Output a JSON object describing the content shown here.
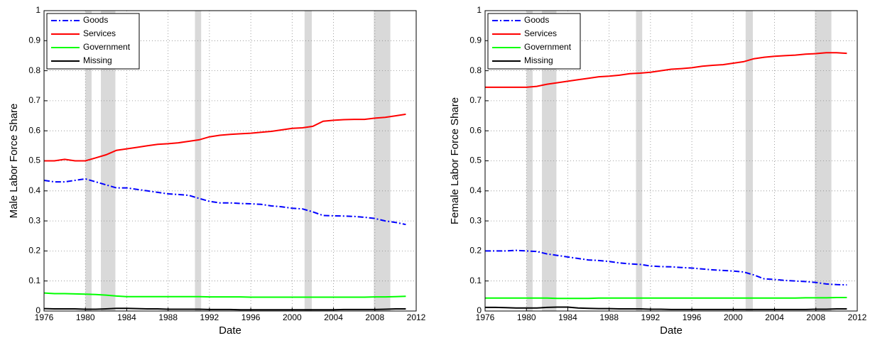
{
  "chart_data": [
    {
      "type": "line",
      "xlabel": "Date",
      "ylabel": "Male Labor Force Share",
      "xlim": [
        1976,
        2012
      ],
      "xticks": [
        1976,
        1980,
        1984,
        1988,
        1992,
        1996,
        2000,
        2004,
        2008,
        2012
      ],
      "ylim": [
        0,
        1
      ],
      "yticks": [
        0,
        0.1,
        0.2,
        0.3,
        0.4,
        0.5,
        0.6,
        0.7,
        0.8,
        0.9,
        1
      ],
      "grid": true,
      "legend": "upper left",
      "recessions": [
        [
          1980.0,
          1980.6
        ],
        [
          1981.5,
          1982.9
        ],
        [
          1990.6,
          1991.2
        ],
        [
          2001.2,
          2001.9
        ],
        [
          2007.9,
          2009.5
        ]
      ],
      "recession_color": "#d9d9d9",
      "x": [
        1976,
        1977,
        1978,
        1979,
        1980,
        1981,
        1982,
        1983,
        1984,
        1985,
        1986,
        1987,
        1988,
        1989,
        1990,
        1991,
        1992,
        1993,
        1994,
        1995,
        1996,
        1997,
        1998,
        1999,
        2000,
        2001,
        2002,
        2003,
        2004,
        2005,
        2006,
        2007,
        2008,
        2009,
        2010,
        2011
      ],
      "series": [
        {
          "name": "Goods",
          "color": "#0000ff",
          "dash": "dash-dot",
          "values": [
            0.435,
            0.43,
            0.43,
            0.435,
            0.44,
            0.43,
            0.42,
            0.41,
            0.41,
            0.405,
            0.4,
            0.395,
            0.39,
            0.388,
            0.385,
            0.375,
            0.365,
            0.36,
            0.36,
            0.358,
            0.357,
            0.355,
            0.35,
            0.347,
            0.342,
            0.34,
            0.33,
            0.318,
            0.317,
            0.316,
            0.315,
            0.312,
            0.308,
            0.3,
            0.295,
            0.288
          ]
        },
        {
          "name": "Services",
          "color": "#ff0000",
          "dash": "solid",
          "values": [
            0.5,
            0.5,
            0.505,
            0.5,
            0.5,
            0.51,
            0.52,
            0.535,
            0.54,
            0.545,
            0.55,
            0.555,
            0.557,
            0.56,
            0.565,
            0.57,
            0.58,
            0.585,
            0.588,
            0.59,
            0.592,
            0.595,
            0.598,
            0.603,
            0.608,
            0.61,
            0.615,
            0.632,
            0.635,
            0.637,
            0.638,
            0.638,
            0.642,
            0.645,
            0.65,
            0.655
          ]
        },
        {
          "name": "Government",
          "color": "#00ff00",
          "dash": "solid",
          "values": [
            0.06,
            0.058,
            0.058,
            0.057,
            0.056,
            0.055,
            0.053,
            0.05,
            0.048,
            0.048,
            0.048,
            0.048,
            0.048,
            0.048,
            0.048,
            0.048,
            0.047,
            0.047,
            0.047,
            0.047,
            0.046,
            0.046,
            0.046,
            0.046,
            0.046,
            0.046,
            0.046,
            0.046,
            0.046,
            0.046,
            0.046,
            0.046,
            0.047,
            0.047,
            0.048,
            0.049
          ]
        },
        {
          "name": "Missing",
          "color": "#000000",
          "dash": "solid",
          "values": [
            0.008,
            0.007,
            0.007,
            0.007,
            0.006,
            0.006,
            0.007,
            0.009,
            0.009,
            0.008,
            0.007,
            0.007,
            0.006,
            0.006,
            0.006,
            0.006,
            0.005,
            0.005,
            0.005,
            0.004,
            0.004,
            0.004,
            0.004,
            0.004,
            0.004,
            0.004,
            0.004,
            0.004,
            0.004,
            0.005,
            0.005,
            0.005,
            0.005,
            0.006,
            0.007,
            0.007
          ]
        }
      ]
    },
    {
      "type": "line",
      "xlabel": "Date",
      "ylabel": "Female Labor Force Share",
      "xlim": [
        1976,
        2012
      ],
      "xticks": [
        1976,
        1980,
        1984,
        1988,
        1992,
        1996,
        2000,
        2004,
        2008,
        2012
      ],
      "ylim": [
        0,
        1
      ],
      "yticks": [
        0,
        0.1,
        0.2,
        0.3,
        0.4,
        0.5,
        0.6,
        0.7,
        0.8,
        0.9,
        1
      ],
      "grid": true,
      "legend": "upper left",
      "recessions": [
        [
          1980.0,
          1980.6
        ],
        [
          1981.5,
          1982.9
        ],
        [
          1990.6,
          1991.2
        ],
        [
          2001.2,
          2001.9
        ],
        [
          2007.9,
          2009.5
        ]
      ],
      "recession_color": "#d9d9d9",
      "x": [
        1976,
        1977,
        1978,
        1979,
        1980,
        1981,
        1982,
        1983,
        1984,
        1985,
        1986,
        1987,
        1988,
        1989,
        1990,
        1991,
        1992,
        1993,
        1994,
        1995,
        1996,
        1997,
        1998,
        1999,
        2000,
        2001,
        2002,
        2003,
        2004,
        2005,
        2006,
        2007,
        2008,
        2009,
        2010,
        2011
      ],
      "series": [
        {
          "name": "Goods",
          "color": "#0000ff",
          "dash": "dash-dot",
          "values": [
            0.2,
            0.2,
            0.2,
            0.202,
            0.2,
            0.198,
            0.19,
            0.185,
            0.18,
            0.175,
            0.17,
            0.168,
            0.165,
            0.16,
            0.157,
            0.155,
            0.15,
            0.148,
            0.147,
            0.145,
            0.143,
            0.14,
            0.137,
            0.135,
            0.133,
            0.13,
            0.12,
            0.107,
            0.105,
            0.102,
            0.1,
            0.098,
            0.095,
            0.09,
            0.088,
            0.087
          ]
        },
        {
          "name": "Services",
          "color": "#ff0000",
          "dash": "solid",
          "values": [
            0.745,
            0.745,
            0.745,
            0.745,
            0.745,
            0.748,
            0.755,
            0.76,
            0.765,
            0.77,
            0.775,
            0.78,
            0.782,
            0.785,
            0.79,
            0.792,
            0.795,
            0.8,
            0.805,
            0.807,
            0.81,
            0.815,
            0.818,
            0.82,
            0.825,
            0.83,
            0.84,
            0.845,
            0.848,
            0.85,
            0.852,
            0.855,
            0.857,
            0.86,
            0.86,
            0.858
          ]
        },
        {
          "name": "Government",
          "color": "#00ff00",
          "dash": "solid",
          "values": [
            0.043,
            0.043,
            0.043,
            0.043,
            0.043,
            0.043,
            0.043,
            0.042,
            0.042,
            0.042,
            0.042,
            0.043,
            0.043,
            0.043,
            0.043,
            0.043,
            0.043,
            0.043,
            0.043,
            0.043,
            0.043,
            0.043,
            0.043,
            0.043,
            0.043,
            0.043,
            0.043,
            0.043,
            0.043,
            0.043,
            0.043,
            0.044,
            0.044,
            0.044,
            0.045,
            0.045
          ]
        },
        {
          "name": "Missing",
          "color": "#000000",
          "dash": "solid",
          "values": [
            0.012,
            0.012,
            0.011,
            0.01,
            0.01,
            0.01,
            0.012,
            0.013,
            0.013,
            0.01,
            0.009,
            0.008,
            0.008,
            0.007,
            0.007,
            0.007,
            0.006,
            0.006,
            0.005,
            0.005,
            0.005,
            0.005,
            0.005,
            0.005,
            0.005,
            0.005,
            0.005,
            0.005,
            0.005,
            0.005,
            0.005,
            0.005,
            0.006,
            0.006,
            0.007,
            0.007
          ]
        }
      ]
    }
  ]
}
